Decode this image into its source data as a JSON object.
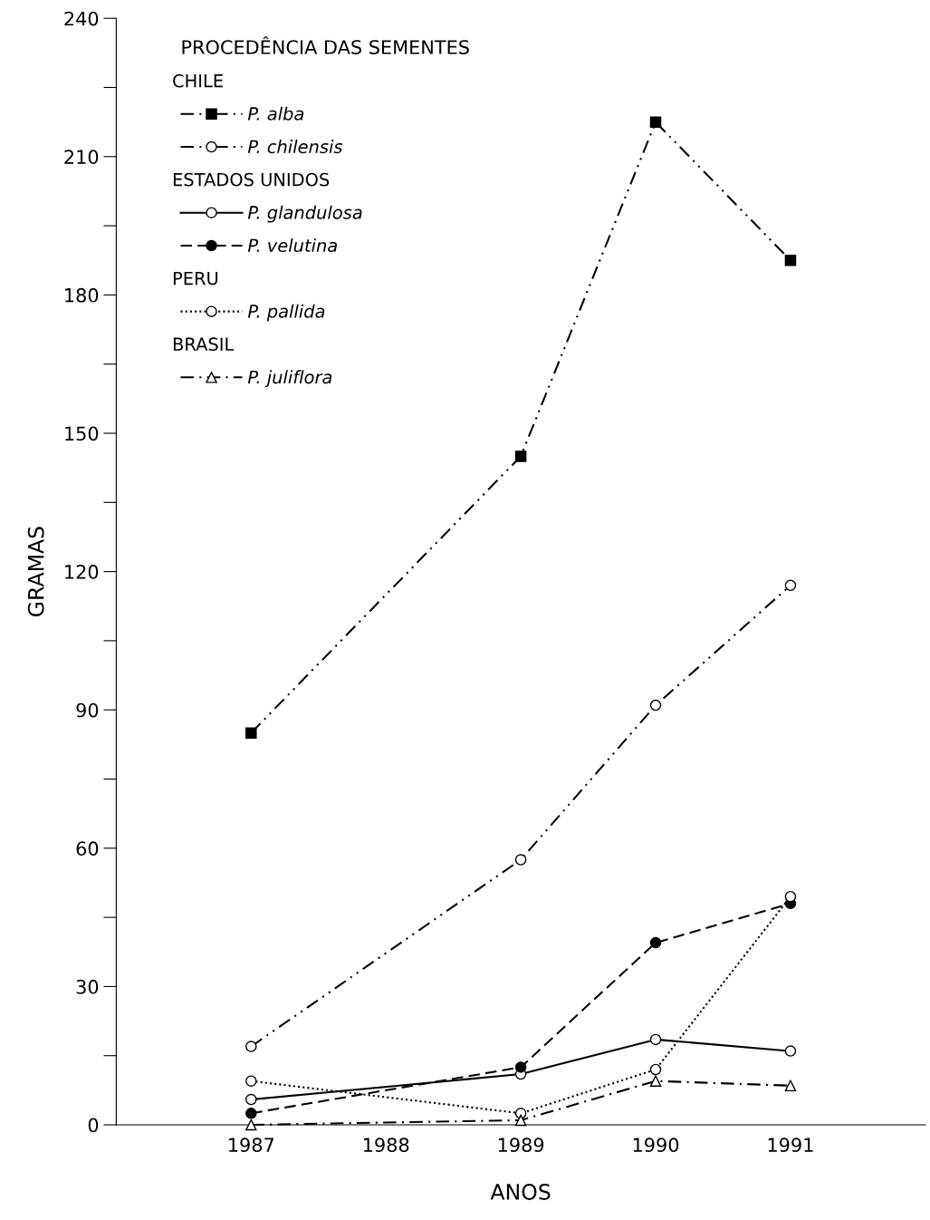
{
  "chart_data": {
    "type": "line",
    "xlabel": "ANOS",
    "ylabel": "GRAMAS",
    "legend_title": "PROCEDÊNCIA DAS SEMENTES",
    "legend": "top left",
    "grid": false,
    "annotations": [
      "CHILE",
      "ESTADOS UNIDOS",
      "PERU",
      "BRASIL"
    ],
    "x": [
      1987,
      1989,
      1990,
      1991
    ],
    "xlim": [
      1986,
      1992
    ],
    "xticks": [
      1987,
      1988,
      1989,
      1990,
      1991
    ],
    "ylim": [
      0,
      240
    ],
    "yticks": [
      0,
      {
        "value": 15,
        "label": null
      },
      30,
      {
        "value": 45,
        "label": null
      },
      60,
      {
        "value": 75,
        "label": null
      },
      90,
      {
        "value": 105,
        "label": null
      },
      120,
      {
        "value": 135,
        "label": null
      },
      150,
      {
        "value": 165,
        "label": null
      },
      180,
      {
        "value": 195,
        "label": null
      },
      210,
      {
        "value": 225,
        "label": null
      },
      240
    ],
    "series": [
      {
        "name": "P. alba",
        "color": "#000000",
        "values": [
          85,
          145,
          217.5,
          187.5
        ],
        "line_style": "dashdotdot",
        "marker": "square"
      },
      {
        "name": "P. chilensis",
        "color": "#000000",
        "values": [
          17,
          57.5,
          91,
          117
        ],
        "line_style": "dashdotdot",
        "marker": "circle"
      },
      {
        "name": "P. glandulosa",
        "color": "#000000",
        "values": [
          5.5,
          11,
          18.5,
          16
        ],
        "line_style": "solid",
        "marker": "circle"
      },
      {
        "name": "P. velutina",
        "color": "#000000",
        "values": [
          2.5,
          12.5,
          39.5,
          48
        ],
        "line_style": "dashed",
        "marker": "circle"
      },
      {
        "name": "P. pallida",
        "color": "#000000",
        "values": [
          9.5,
          2.5,
          12,
          49.5
        ],
        "line_style": "dotted",
        "marker": "circle"
      },
      {
        "name": "P. juliflora",
        "color": "#000000",
        "values": [
          0,
          1,
          9.5,
          8.5
        ],
        "line_style": "dashdot",
        "marker": "triangle"
      }
    ]
  }
}
